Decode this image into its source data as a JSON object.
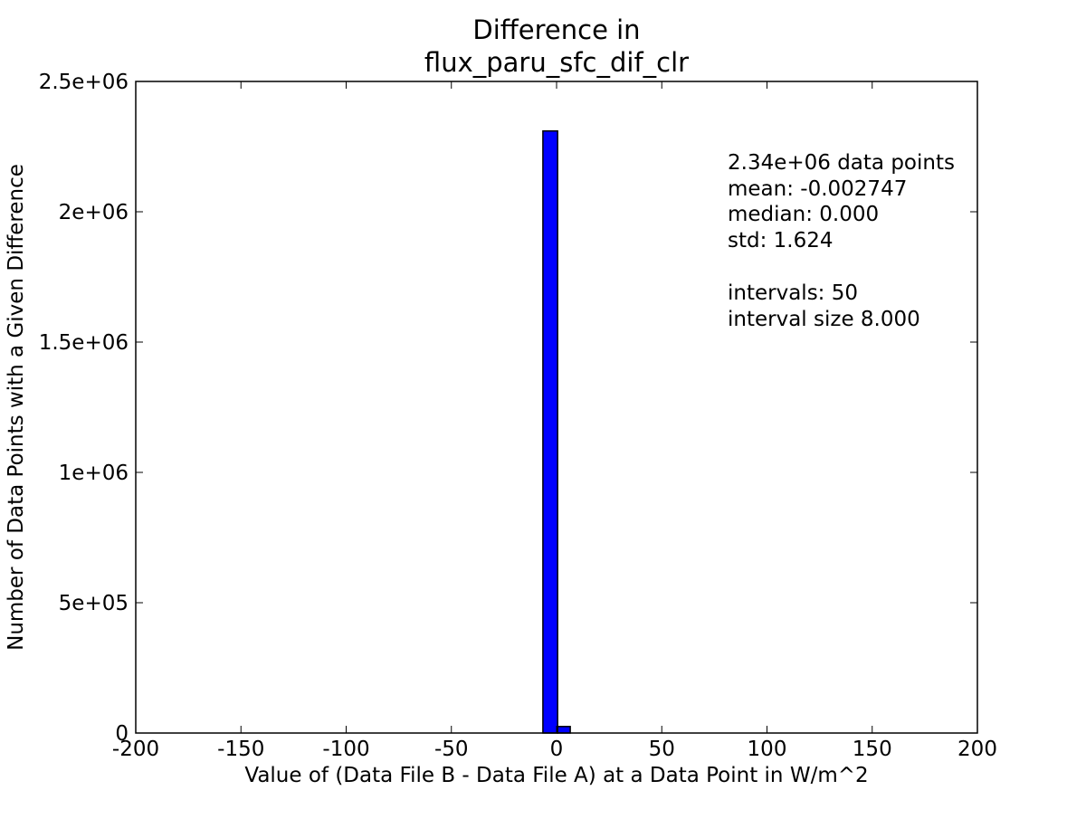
{
  "chart_data": {
    "type": "bar",
    "title_line1": "Difference in",
    "title_line2": "flux_paru_sfc_dif_clr",
    "xlabel": "Value of (Data File B - Data File A) at a Data Point in W/m^2",
    "ylabel": "Number of Data Points with a Given Difference",
    "xlim": [
      -200,
      200
    ],
    "ylim": [
      0,
      2500000
    ],
    "x_ticks": [
      {
        "value": -200,
        "label": "-200"
      },
      {
        "value": -150,
        "label": "-150"
      },
      {
        "value": -100,
        "label": "-100"
      },
      {
        "value": -50,
        "label": "-50"
      },
      {
        "value": 0,
        "label": "0"
      },
      {
        "value": 50,
        "label": "50"
      },
      {
        "value": 100,
        "label": "100"
      },
      {
        "value": 150,
        "label": "150"
      },
      {
        "value": 200,
        "label": "200"
      }
    ],
    "y_ticks": [
      {
        "value": 0,
        "label": "0"
      },
      {
        "value": 500000,
        "label": "5e+05"
      },
      {
        "value": 1000000,
        "label": "1e+06"
      },
      {
        "value": 1500000,
        "label": "1.5e+06"
      },
      {
        "value": 2000000,
        "label": "2e+06"
      },
      {
        "value": 2500000,
        "label": "2.5e+06"
      }
    ],
    "bars": [
      {
        "x_start": -6.5,
        "x_end": 0.5,
        "value": 2310000
      },
      {
        "x_start": 0.5,
        "x_end": 6.5,
        "value": 25000
      }
    ],
    "bar_color": "#0000ff",
    "grid": false,
    "stats": {
      "line1": "2.34e+06 data points",
      "line2": "mean: -0.002747",
      "line3": "median: 0.000",
      "line4": "std: 1.624",
      "line5": "intervals: 50",
      "line6": "interval size 8.000"
    }
  }
}
